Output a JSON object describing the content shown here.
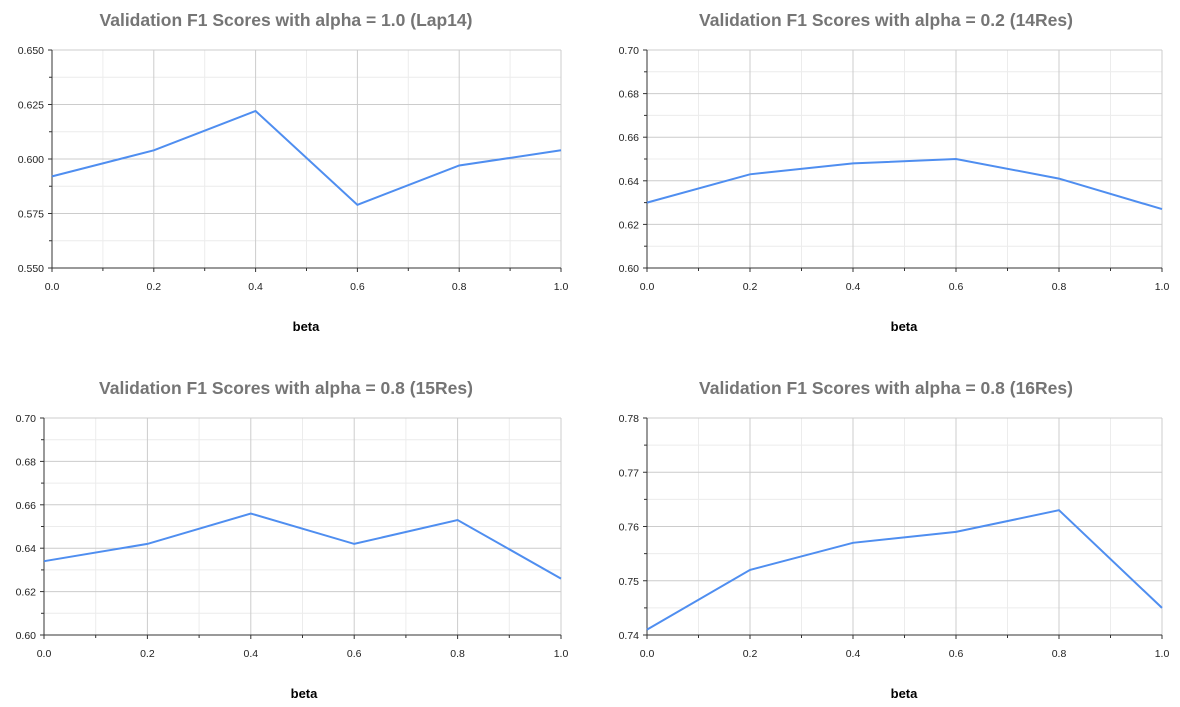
{
  "chart_data": [
    {
      "type": "line",
      "title": "Validation F1 Scores with alpha = 1.0 (Lap14)",
      "xlabel": "beta",
      "ylabel": "",
      "x": [
        0.0,
        0.2,
        0.4,
        0.6,
        0.8,
        1.0
      ],
      "xticks": [
        "0.0",
        "0.2",
        "0.4",
        "0.6",
        "0.8",
        "1.0"
      ],
      "xlim": [
        0.0,
        1.0
      ],
      "ylim": [
        0.55,
        0.65
      ],
      "yticks": [
        "0.550",
        "0.575",
        "0.600",
        "0.625",
        "0.650"
      ],
      "grid": true,
      "series": [
        {
          "values": [
            0.592,
            0.604,
            0.622,
            0.579,
            0.597,
            0.604
          ]
        }
      ]
    },
    {
      "type": "line",
      "title": "Validation F1 Scores with alpha = 0.2 (14Res)",
      "xlabel": "beta",
      "ylabel": "",
      "x": [
        0.0,
        0.2,
        0.4,
        0.6,
        0.8,
        1.0
      ],
      "xticks": [
        "0.0",
        "0.2",
        "0.4",
        "0.6",
        "0.8",
        "1.0"
      ],
      "xlim": [
        0.0,
        1.0
      ],
      "ylim": [
        0.6,
        0.7
      ],
      "yticks": [
        "0.60",
        "0.62",
        "0.64",
        "0.66",
        "0.68",
        "0.70"
      ],
      "grid": true,
      "series": [
        {
          "values": [
            0.63,
            0.643,
            0.648,
            0.65,
            0.641,
            0.627
          ]
        }
      ]
    },
    {
      "type": "line",
      "title": "Validation F1 Scores with alpha = 0.8 (15Res)",
      "xlabel": "beta",
      "ylabel": "",
      "x": [
        0.0,
        0.2,
        0.4,
        0.6,
        0.8,
        1.0
      ],
      "xticks": [
        "0.0",
        "0.2",
        "0.4",
        "0.6",
        "0.8",
        "1.0"
      ],
      "xlim": [
        0.0,
        1.0
      ],
      "ylim": [
        0.6,
        0.7
      ],
      "yticks": [
        "0.60",
        "0.62",
        "0.64",
        "0.66",
        "0.68",
        "0.70"
      ],
      "grid": true,
      "series": [
        {
          "values": [
            0.634,
            0.642,
            0.656,
            0.642,
            0.653,
            0.626
          ]
        }
      ]
    },
    {
      "type": "line",
      "title": "Validation F1 Scores with alpha = 0.8 (16Res)",
      "xlabel": "beta",
      "ylabel": "",
      "x": [
        0.0,
        0.2,
        0.4,
        0.6,
        0.8,
        1.0
      ],
      "xticks": [
        "0.0",
        "0.2",
        "0.4",
        "0.6",
        "0.8",
        "1.0"
      ],
      "xlim": [
        0.0,
        1.0
      ],
      "ylim": [
        0.74,
        0.78
      ],
      "yticks": [
        "0.74",
        "0.75",
        "0.76",
        "0.77",
        "0.78"
      ],
      "grid": true,
      "series": [
        {
          "values": [
            0.741,
            0.752,
            0.757,
            0.759,
            0.763,
            0.745
          ]
        }
      ]
    }
  ],
  "colors": {
    "line": "#4f8ef0",
    "grid_major": "#cccccc",
    "grid_minor": "#ececec",
    "axis": "#333333",
    "title": "#757575"
  }
}
